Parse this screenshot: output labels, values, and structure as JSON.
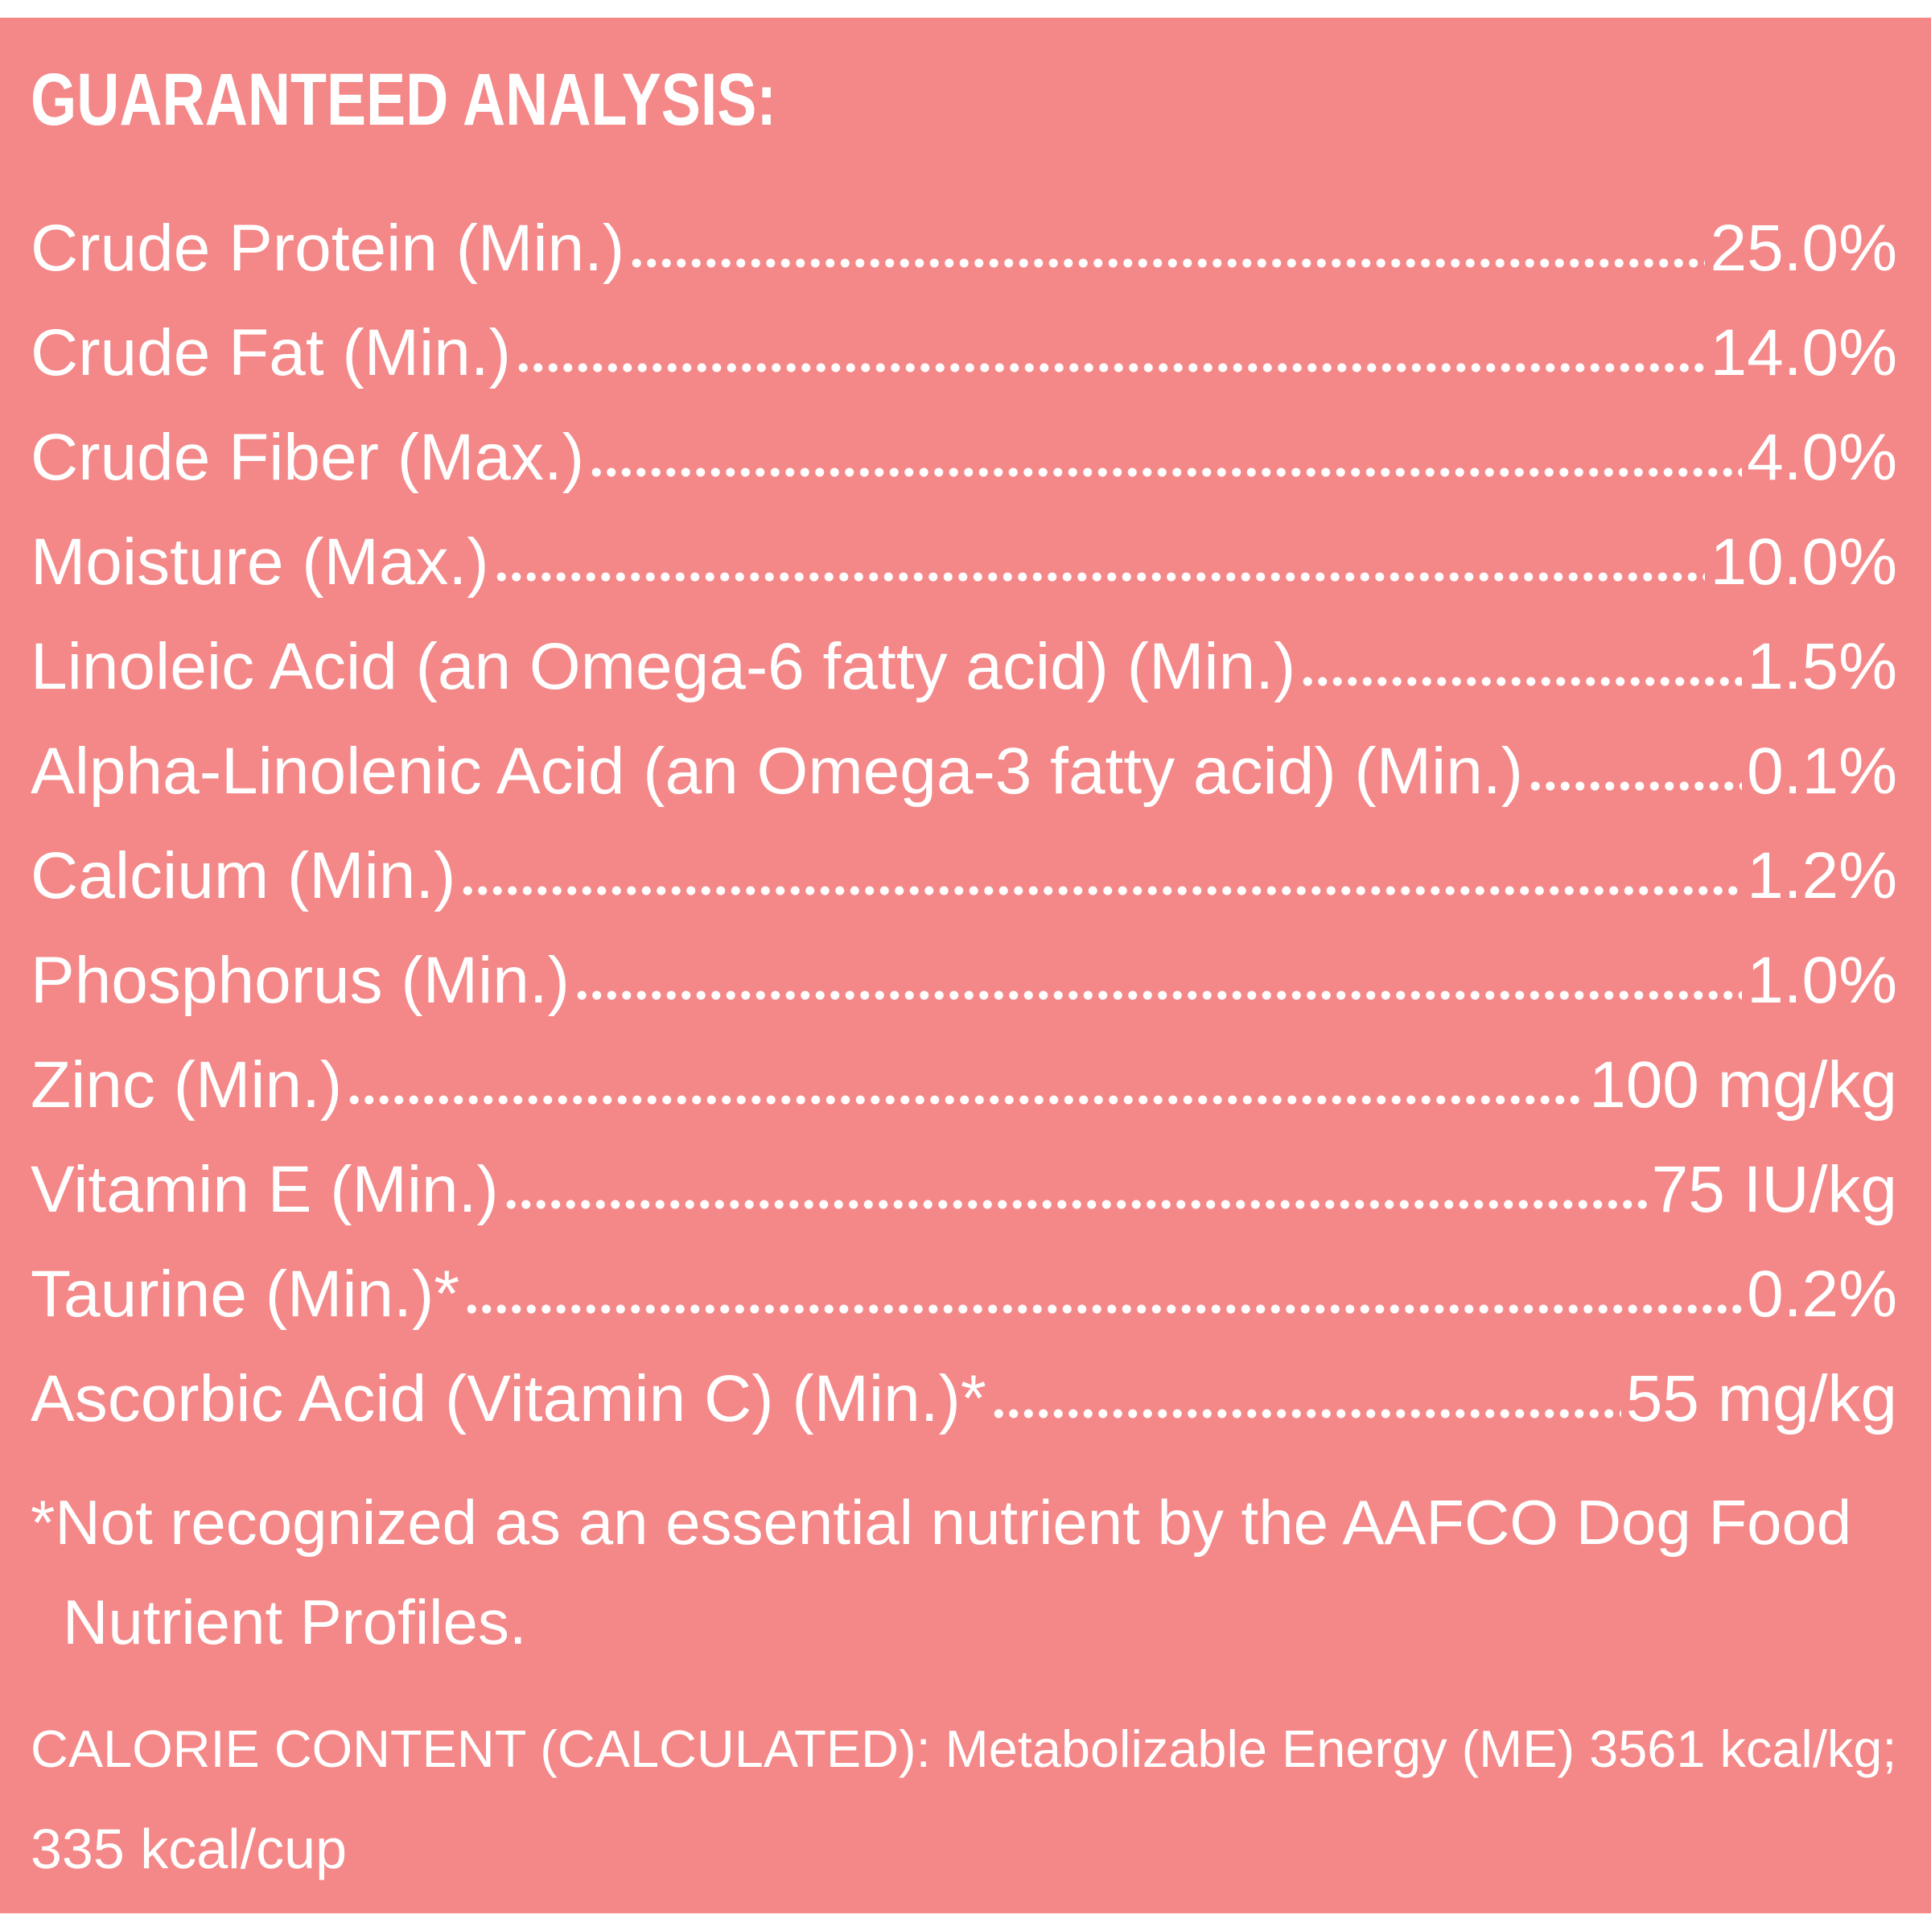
{
  "title": "GUARANTEED ANALYSIS:",
  "nutrients": [
    {
      "label": "Crude Protein (Min.)",
      "value": "25.0%"
    },
    {
      "label": "Crude Fat (Min.)",
      "value": "14.0%"
    },
    {
      "label": "Crude Fiber (Max.)",
      "value": "4.0%"
    },
    {
      "label": "Moisture (Max.)",
      "value": "10.0%"
    },
    {
      "label": "Linoleic Acid (an Omega-6 fatty acid) (Min.)",
      "value": "1.5%"
    },
    {
      "label": "Alpha-Linolenic Acid (an Omega-3 fatty acid) (Min.)",
      "value": "0.1%"
    },
    {
      "label": "Calcium (Min.)",
      "value": "1.2%"
    },
    {
      "label": "Phosphorus (Min.)",
      "value": "1.0%"
    },
    {
      "label": "Zinc (Min.)",
      "value": "100 mg/kg"
    },
    {
      "label": "Vitamin E (Min.)",
      "value": "75 IU/kg"
    },
    {
      "label": "Taurine (Min.)*",
      "value": "0.2%"
    },
    {
      "label": "Ascorbic Acid (Vitamin C) (Min.)*",
      "value": "55 mg/kg"
    }
  ],
  "footnote": {
    "line1": "*Not recognized as an essential nutrient by the AAFCO Dog Food",
    "line2": "Nutrient Profiles."
  },
  "calorie": {
    "line1": "CALORIE CONTENT (CALCULATED): Metabolizable Energy (ME) 3561 kcal/kg;",
    "line2": "335 kcal/cup"
  },
  "colors": {
    "background": "#f48787",
    "text": "#ffffff"
  }
}
